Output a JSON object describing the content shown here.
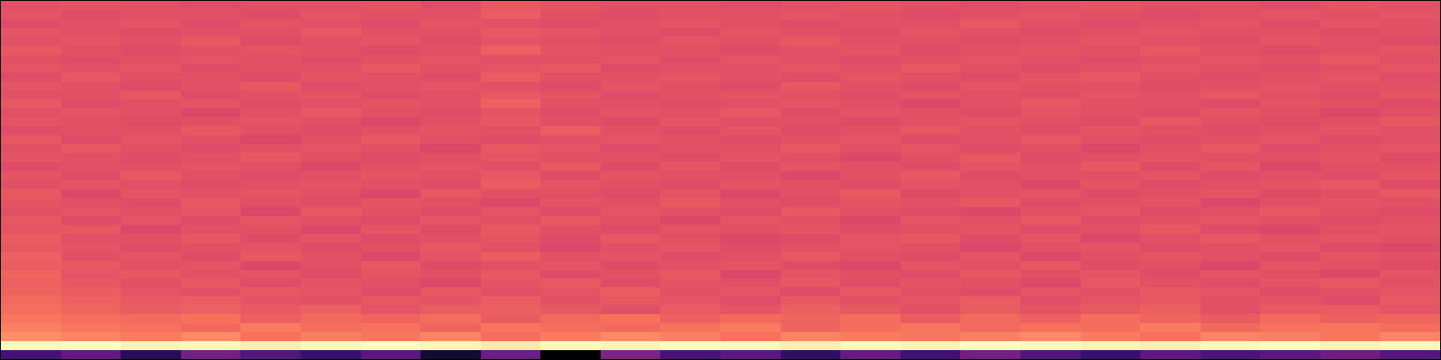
{
  "chart_data": {
    "type": "heatmap",
    "tick_labels": false,
    "cells": [
      [
        0.25,
        0.32,
        0.18,
        0.36,
        0.28,
        0.22,
        0.3,
        0.12,
        0.34,
        0.04,
        0.38,
        0.26,
        0.3,
        0.2,
        0.33,
        0.24,
        0.36,
        0.28,
        0.22,
        0.31,
        0.27,
        0.3,
        0.35,
        0.29
      ],
      [
        0.97,
        0.98,
        0.96,
        0.97,
        0.95,
        0.97,
        0.98,
        0.96,
        0.94,
        0.97,
        0.96,
        0.98,
        0.97,
        0.95,
        0.97,
        0.96,
        0.98,
        0.97,
        0.96,
        0.95,
        0.97,
        0.98,
        0.96,
        0.97
      ],
      [
        0.76,
        0.74,
        0.72,
        0.75,
        0.7,
        0.73,
        0.71,
        0.74,
        0.69,
        0.72,
        0.75,
        0.73,
        0.7,
        0.74,
        0.72,
        0.71,
        0.73,
        0.75,
        0.72,
        0.7,
        0.74,
        0.73,
        0.71,
        0.74
      ],
      [
        0.73,
        0.71,
        0.7,
        0.68,
        0.72,
        0.69,
        0.7,
        0.67,
        0.71,
        0.69,
        0.68,
        0.7,
        0.72,
        0.67,
        0.69,
        0.71,
        0.68,
        0.7,
        0.69,
        0.72,
        0.68,
        0.7,
        0.71,
        0.69
      ],
      [
        0.71,
        0.69,
        0.68,
        0.7,
        0.66,
        0.68,
        0.67,
        0.69,
        0.65,
        0.68,
        0.7,
        0.66,
        0.68,
        0.67,
        0.69,
        0.65,
        0.68,
        0.66,
        0.69,
        0.67,
        0.65,
        0.68,
        0.66,
        0.67
      ],
      [
        0.69,
        0.67,
        0.65,
        0.66,
        0.64,
        0.66,
        0.63,
        0.65,
        0.66,
        0.64,
        0.62,
        0.65,
        0.63,
        0.66,
        0.64,
        0.62,
        0.65,
        0.63,
        0.64,
        0.66,
        0.62,
        0.64,
        0.65,
        0.63
      ],
      [
        0.68,
        0.66,
        0.64,
        0.65,
        0.63,
        0.62,
        0.64,
        0.63,
        0.65,
        0.62,
        0.64,
        0.63,
        0.61,
        0.64,
        0.62,
        0.63,
        0.65,
        0.61,
        0.63,
        0.64,
        0.62,
        0.63,
        0.61,
        0.64
      ],
      [
        0.67,
        0.65,
        0.63,
        0.62,
        0.64,
        0.63,
        0.61,
        0.64,
        0.62,
        0.63,
        0.65,
        0.62,
        0.63,
        0.61,
        0.64,
        0.62,
        0.61,
        0.63,
        0.62,
        0.64,
        0.63,
        0.61,
        0.62,
        0.63
      ],
      [
        0.66,
        0.64,
        0.62,
        0.64,
        0.61,
        0.63,
        0.62,
        0.6,
        0.63,
        0.64,
        0.61,
        0.63,
        0.62,
        0.64,
        0.61,
        0.63,
        0.62,
        0.6,
        0.64,
        0.62,
        0.61,
        0.63,
        0.64,
        0.62
      ],
      [
        0.67,
        0.63,
        0.64,
        0.62,
        0.63,
        0.61,
        0.63,
        0.62,
        0.64,
        0.61,
        0.62,
        0.64,
        0.6,
        0.63,
        0.62,
        0.61,
        0.64,
        0.62,
        0.63,
        0.61,
        0.63,
        0.62,
        0.6,
        0.63
      ],
      [
        0.65,
        0.64,
        0.62,
        0.63,
        0.6,
        0.62,
        0.64,
        0.61,
        0.62,
        0.63,
        0.61,
        0.62,
        0.63,
        0.61,
        0.6,
        0.63,
        0.62,
        0.64,
        0.61,
        0.62,
        0.6,
        0.63,
        0.62,
        0.61
      ],
      [
        0.66,
        0.62,
        0.63,
        0.61,
        0.64,
        0.62,
        0.6,
        0.63,
        0.65,
        0.62,
        0.63,
        0.61,
        0.62,
        0.64,
        0.62,
        0.61,
        0.63,
        0.6,
        0.62,
        0.63,
        0.62,
        0.61,
        0.63,
        0.62
      ],
      [
        0.64,
        0.63,
        0.61,
        0.62,
        0.63,
        0.61,
        0.62,
        0.64,
        0.62,
        0.6,
        0.62,
        0.63,
        0.61,
        0.62,
        0.63,
        0.62,
        0.6,
        0.62,
        0.63,
        0.61,
        0.62,
        0.63,
        0.61,
        0.6
      ],
      [
        0.65,
        0.62,
        0.62,
        0.64,
        0.61,
        0.63,
        0.61,
        0.62,
        0.63,
        0.61,
        0.64,
        0.62,
        0.6,
        0.61,
        0.63,
        0.64,
        0.61,
        0.63,
        0.6,
        0.62,
        0.64,
        0.62,
        0.63,
        0.62
      ],
      [
        0.63,
        0.64,
        0.6,
        0.62,
        0.62,
        0.6,
        0.63,
        0.61,
        0.64,
        0.62,
        0.61,
        0.63,
        0.62,
        0.63,
        0.61,
        0.62,
        0.63,
        0.61,
        0.62,
        0.64,
        0.61,
        0.6,
        0.62,
        0.63
      ],
      [
        0.64,
        0.61,
        0.63,
        0.61,
        0.63,
        0.62,
        0.61,
        0.63,
        0.62,
        0.64,
        0.62,
        0.6,
        0.63,
        0.62,
        0.6,
        0.63,
        0.62,
        0.64,
        0.61,
        0.62,
        0.63,
        0.62,
        0.61,
        0.62
      ],
      [
        0.62,
        0.63,
        0.62,
        0.63,
        0.6,
        0.64,
        0.62,
        0.61,
        0.63,
        0.61,
        0.63,
        0.62,
        0.61,
        0.64,
        0.62,
        0.61,
        0.6,
        0.62,
        0.63,
        0.61,
        0.62,
        0.64,
        0.62,
        0.61
      ],
      [
        0.63,
        0.62,
        0.61,
        0.64,
        0.62,
        0.61,
        0.63,
        0.62,
        0.6,
        0.63,
        0.62,
        0.64,
        0.62,
        0.61,
        0.63,
        0.62,
        0.64,
        0.61,
        0.62,
        0.63,
        0.6,
        0.62,
        0.63,
        0.62
      ],
      [
        0.64,
        0.6,
        0.63,
        0.62,
        0.63,
        0.62,
        0.6,
        0.64,
        0.62,
        0.62,
        0.61,
        0.63,
        0.6,
        0.62,
        0.64,
        0.61,
        0.62,
        0.63,
        0.61,
        0.62,
        0.63,
        0.61,
        0.62,
        0.64
      ],
      [
        0.62,
        0.63,
        0.62,
        0.61,
        0.62,
        0.63,
        0.62,
        0.61,
        0.65,
        0.63,
        0.62,
        0.61,
        0.63,
        0.62,
        0.61,
        0.63,
        0.62,
        0.6,
        0.63,
        0.61,
        0.62,
        0.63,
        0.64,
        0.61
      ],
      [
        0.63,
        0.61,
        0.64,
        0.62,
        0.61,
        0.62,
        0.63,
        0.62,
        0.64,
        0.61,
        0.63,
        0.62,
        0.62,
        0.6,
        0.62,
        0.64,
        0.61,
        0.62,
        0.62,
        0.63,
        0.61,
        0.62,
        0.61,
        0.63
      ],
      [
        0.61,
        0.62,
        0.62,
        0.63,
        0.62,
        0.6,
        0.62,
        0.63,
        0.62,
        0.64,
        0.61,
        0.63,
        0.61,
        0.63,
        0.62,
        0.61,
        0.63,
        0.62,
        0.64,
        0.61,
        0.63,
        0.6,
        0.62,
        0.62
      ],
      [
        0.63,
        0.62,
        0.61,
        0.62,
        0.64,
        0.62,
        0.61,
        0.62,
        0.63,
        0.62,
        0.62,
        0.61,
        0.63,
        0.62,
        0.6,
        0.62,
        0.64,
        0.61,
        0.62,
        0.63,
        0.62,
        0.62,
        0.63,
        0.61
      ],
      [
        0.62,
        0.64,
        0.62,
        0.61,
        0.62,
        0.63,
        0.62,
        0.6,
        0.64,
        0.63,
        0.61,
        0.62,
        0.62,
        0.64,
        0.62,
        0.63,
        0.61,
        0.62,
        0.6,
        0.62,
        0.64,
        0.61,
        0.62,
        0.63
      ],
      [
        0.64,
        0.61,
        0.63,
        0.62,
        0.6,
        0.62,
        0.64,
        0.62,
        0.61,
        0.62,
        0.63,
        0.62,
        0.61,
        0.62,
        0.63,
        0.61,
        0.62,
        0.64,
        0.62,
        0.61,
        0.62,
        0.63,
        0.61,
        0.62
      ],
      [
        0.61,
        0.62,
        0.62,
        0.64,
        0.62,
        0.61,
        0.62,
        0.63,
        0.62,
        0.65,
        0.62,
        0.61,
        0.63,
        0.61,
        0.62,
        0.64,
        0.62,
        0.61,
        0.63,
        0.62,
        0.61,
        0.62,
        0.63,
        0.62
      ],
      [
        0.63,
        0.62,
        0.61,
        0.62,
        0.63,
        0.62,
        0.6,
        0.62,
        0.64,
        0.62,
        0.61,
        0.63,
        0.62,
        0.62,
        0.61,
        0.62,
        0.63,
        0.62,
        0.61,
        0.64,
        0.62,
        0.61,
        0.62,
        0.64
      ],
      [
        0.62,
        0.63,
        0.62,
        0.6,
        0.62,
        0.64,
        0.62,
        0.61,
        0.63,
        0.61,
        0.63,
        0.62,
        0.64,
        0.61,
        0.63,
        0.62,
        0.61,
        0.63,
        0.62,
        0.61,
        0.63,
        0.62,
        0.6,
        0.62
      ],
      [
        0.64,
        0.61,
        0.62,
        0.63,
        0.61,
        0.62,
        0.63,
        0.62,
        0.66,
        0.62,
        0.62,
        0.61,
        0.62,
        0.63,
        0.62,
        0.6,
        0.62,
        0.64,
        0.62,
        0.62,
        0.61,
        0.63,
        0.62,
        0.61
      ],
      [
        0.62,
        0.62,
        0.64,
        0.61,
        0.62,
        0.63,
        0.61,
        0.62,
        0.64,
        0.63,
        0.61,
        0.62,
        0.63,
        0.62,
        0.61,
        0.63,
        0.62,
        0.61,
        0.63,
        0.62,
        0.64,
        0.62,
        0.61,
        0.63
      ],
      [
        0.63,
        0.62,
        0.61,
        0.62,
        0.64,
        0.61,
        0.62,
        0.63,
        0.62,
        0.61,
        0.63,
        0.62,
        0.61,
        0.64,
        0.62,
        0.61,
        0.63,
        0.62,
        0.62,
        0.61,
        0.62,
        0.63,
        0.62,
        0.62
      ],
      [
        0.61,
        0.64,
        0.62,
        0.62,
        0.61,
        0.63,
        0.62,
        0.61,
        0.65,
        0.62,
        0.62,
        0.63,
        0.62,
        0.61,
        0.63,
        0.62,
        0.61,
        0.63,
        0.64,
        0.62,
        0.61,
        0.62,
        0.63,
        0.61
      ],
      [
        0.63,
        0.62,
        0.63,
        0.61,
        0.62,
        0.62,
        0.64,
        0.62,
        0.63,
        0.64,
        0.61,
        0.62,
        0.62,
        0.63,
        0.62,
        0.64,
        0.62,
        0.61,
        0.62,
        0.63,
        0.62,
        0.61,
        0.62,
        0.63
      ],
      [
        0.62,
        0.61,
        0.62,
        0.63,
        0.62,
        0.61,
        0.62,
        0.63,
        0.62,
        0.62,
        0.63,
        0.61,
        0.63,
        0.62,
        0.61,
        0.62,
        0.63,
        0.62,
        0.61,
        0.62,
        0.63,
        0.62,
        0.64,
        0.62
      ],
      [
        0.64,
        0.62,
        0.61,
        0.62,
        0.63,
        0.62,
        0.61,
        0.62,
        0.66,
        0.63,
        0.62,
        0.62,
        0.61,
        0.62,
        0.63,
        0.61,
        0.62,
        0.63,
        0.62,
        0.64,
        0.62,
        0.61,
        0.62,
        0.63
      ],
      [
        0.62,
        0.63,
        0.62,
        0.64,
        0.61,
        0.62,
        0.63,
        0.61,
        0.63,
        0.62,
        0.61,
        0.63,
        0.62,
        0.64,
        0.62,
        0.62,
        0.61,
        0.62,
        0.63,
        0.62,
        0.61,
        0.63,
        0.62,
        0.61
      ],
      [
        0.63,
        0.62,
        0.61,
        0.62,
        0.62,
        0.64,
        0.62,
        0.62,
        0.64,
        0.63,
        0.62,
        0.61,
        0.63,
        0.62,
        0.61,
        0.63,
        0.62,
        0.61,
        0.62,
        0.63,
        0.62,
        0.62,
        0.61,
        0.62
      ],
      [
        0.61,
        0.62,
        0.63,
        0.61,
        0.63,
        0.62,
        0.61,
        0.63,
        0.62,
        0.61,
        0.62,
        0.63,
        0.62,
        0.61,
        0.62,
        0.62,
        0.64,
        0.62,
        0.61,
        0.62,
        0.63,
        0.61,
        0.63,
        0.62
      ],
      [
        0.63,
        0.61,
        0.62,
        0.62,
        0.61,
        0.63,
        0.62,
        0.62,
        0.65,
        0.62,
        0.61,
        0.62,
        0.62,
        0.63,
        0.62,
        0.61,
        0.62,
        0.63,
        0.62,
        0.61,
        0.62,
        0.63,
        0.62,
        0.63
      ],
      [
        0.62,
        0.63,
        0.62,
        0.61,
        0.62,
        0.62,
        0.63,
        0.61,
        0.64,
        0.63,
        0.62,
        0.62,
        0.61,
        0.62,
        0.63,
        0.62,
        0.61,
        0.62,
        0.63,
        0.62,
        0.62,
        0.61,
        0.63,
        0.62
      ]
    ]
  }
}
